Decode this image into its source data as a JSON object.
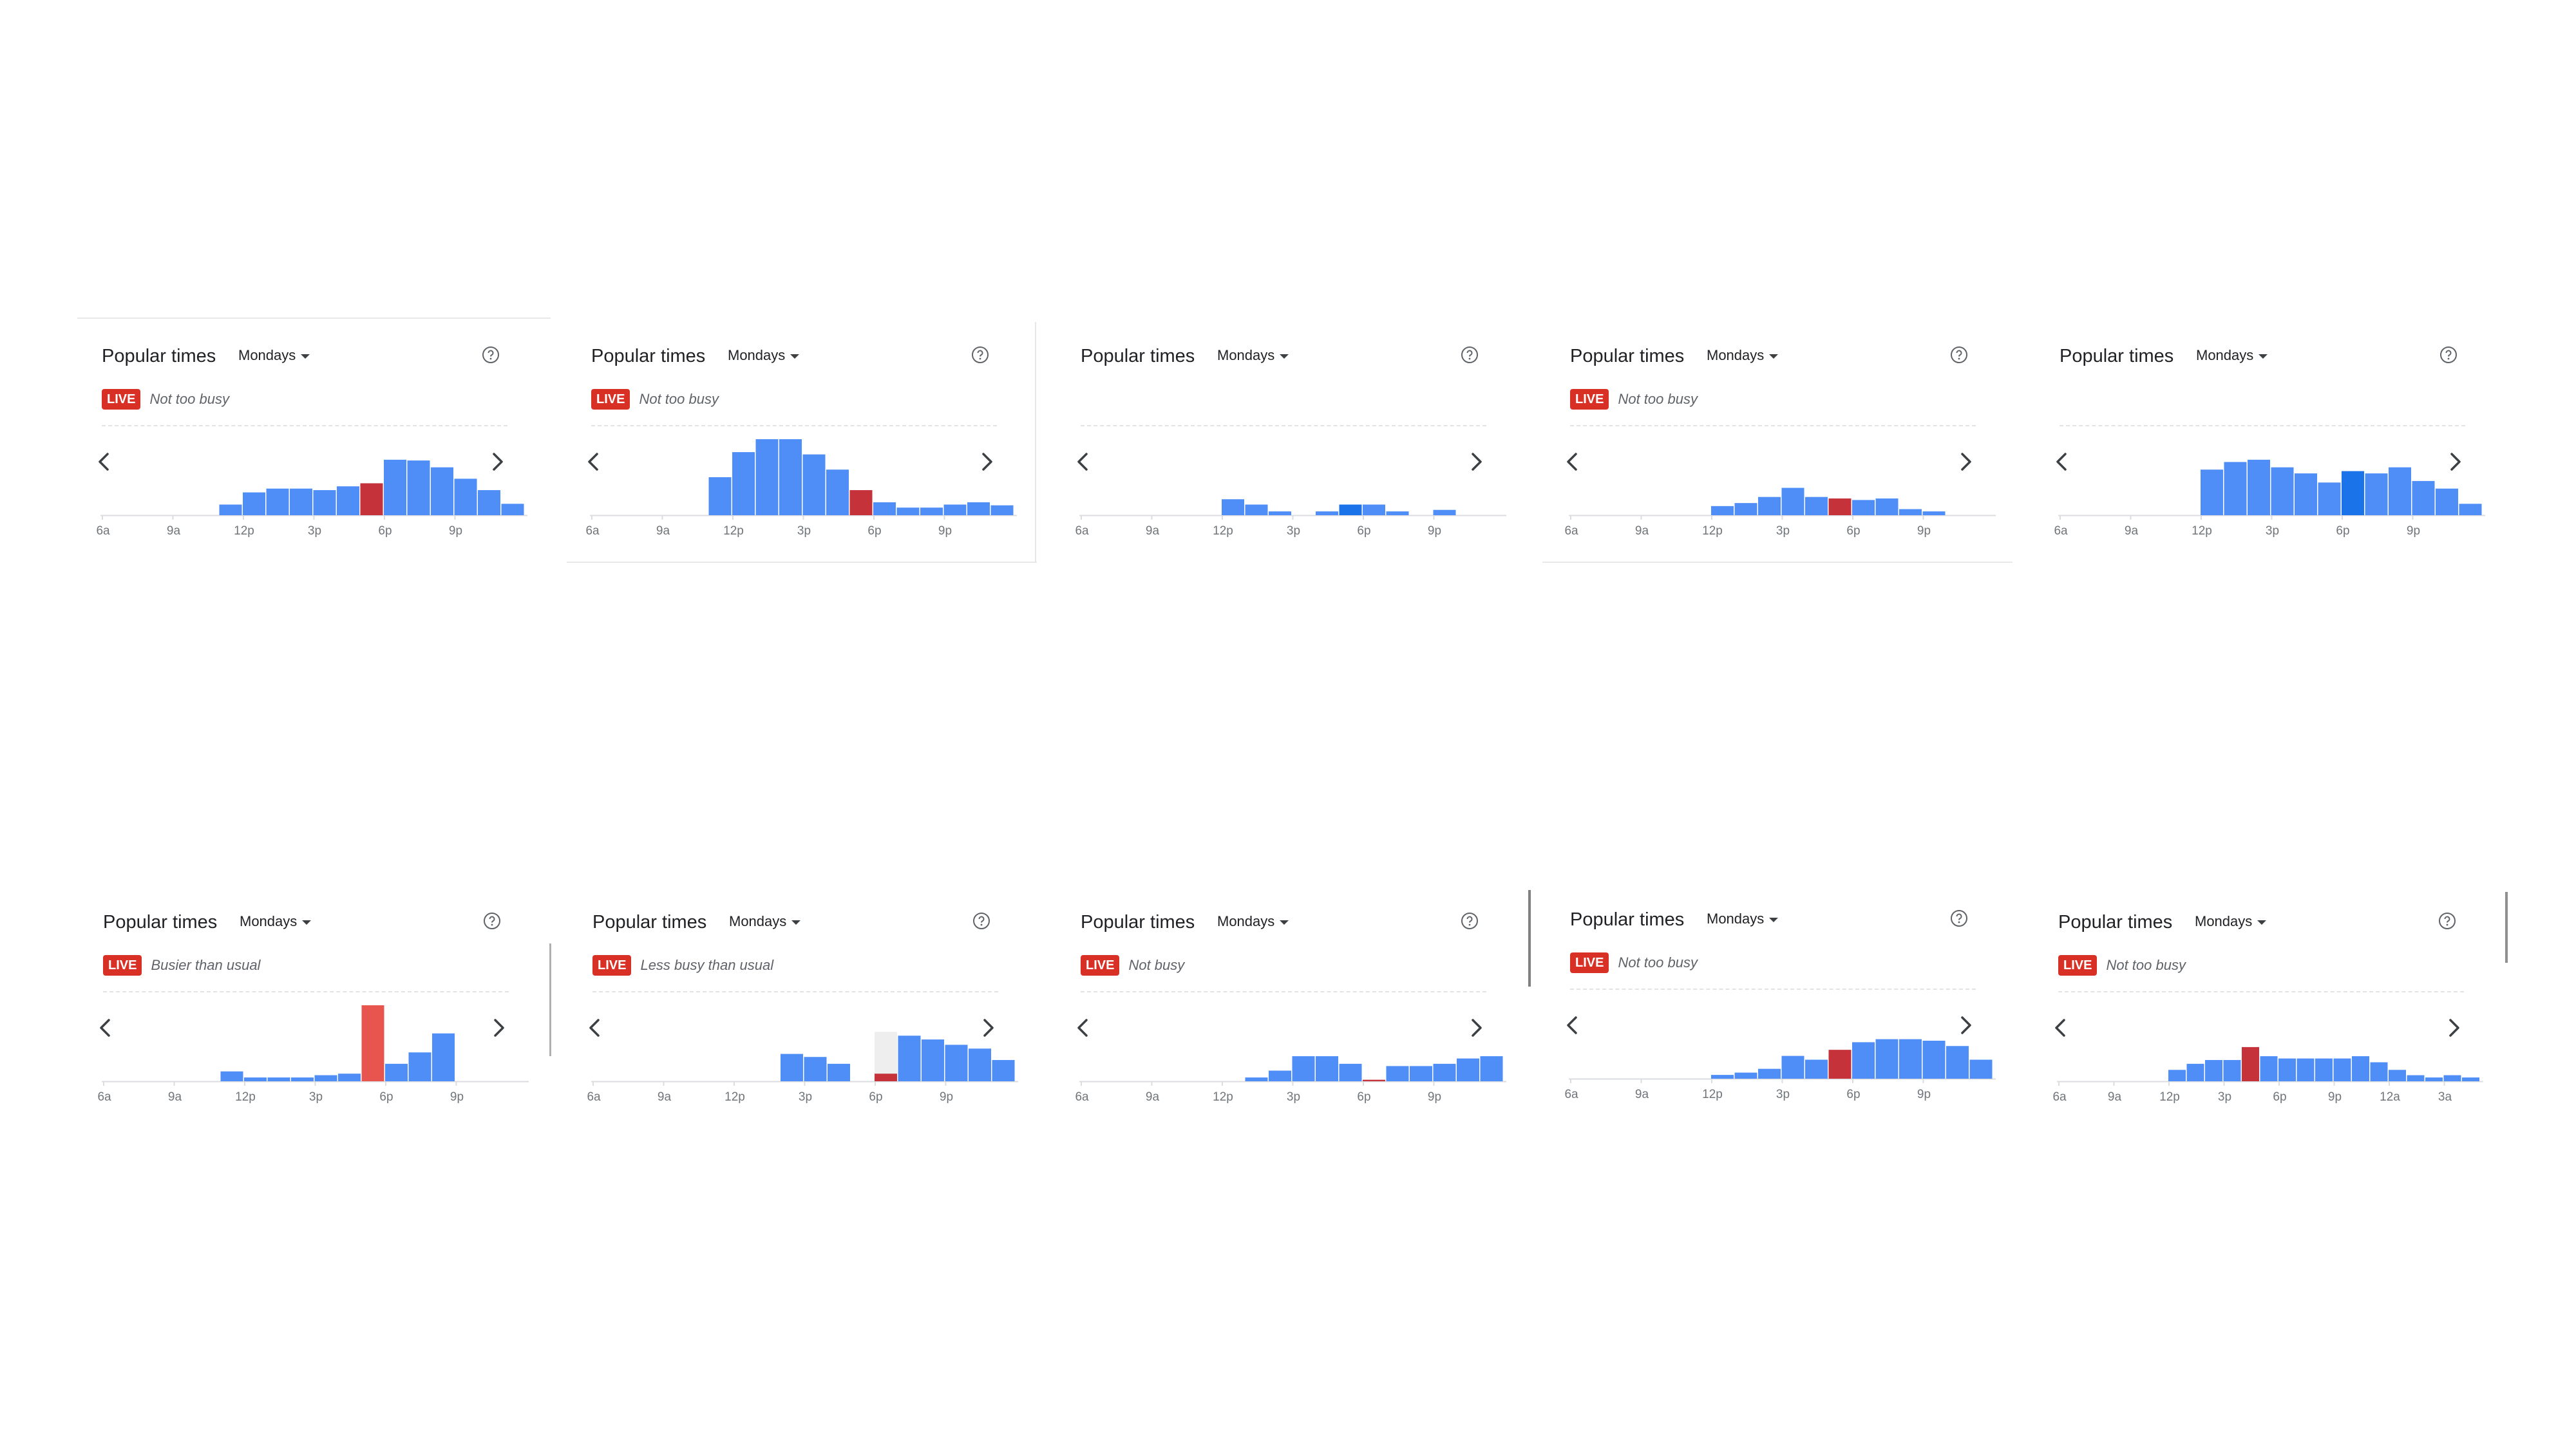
{
  "colors": {
    "bar": "#4f8ef7",
    "bar_dark": "#1a73e8",
    "live_bar": "#e8544e",
    "live_bar_dark": "#c5323a",
    "usual_bg": "#eeeeee",
    "axis": "#dadce0",
    "tick_text": "#70757a",
    "live_badge": "#d93025"
  },
  "icons": {
    "help": "help-circle-icon",
    "prev": "chevron-left-icon",
    "next": "chevron-right-icon",
    "caret": "caret-down-icon"
  },
  "panels": [
    {
      "title": "Popular times",
      "day": "Mondays",
      "live": true,
      "live_label": "LIVE",
      "status": "Not too busy",
      "chart_data": {
        "type": "bar",
        "title": "",
        "x_ticks": [
          "6a",
          "9a",
          "12p",
          "3p",
          "6p",
          "9p"
        ],
        "ylim": [
          0,
          100
        ],
        "values": [
          0,
          0,
          0,
          0,
          0,
          14,
          30,
          35,
          35,
          33,
          38,
          48,
          73,
          72,
          63,
          48,
          33,
          15
        ],
        "live_index": 11,
        "live_value": 42,
        "live_style": "full",
        "highlight_index": -1
      }
    },
    {
      "title": "Popular times",
      "day": "Mondays",
      "live": true,
      "live_label": "LIVE",
      "status": "Not too busy",
      "chart_data": {
        "type": "bar",
        "title": "",
        "x_ticks": [
          "6a",
          "9a",
          "12p",
          "3p",
          "6p",
          "9p"
        ],
        "ylim": [
          0,
          100
        ],
        "values": [
          0,
          0,
          0,
          0,
          0,
          50,
          83,
          100,
          100,
          80,
          60,
          33,
          17,
          10,
          10,
          14,
          17,
          13
        ],
        "live_index": 11,
        "live_value": 33,
        "live_style": "full",
        "highlight_index": -1
      }
    },
    {
      "title": "Popular times",
      "day": "Mondays",
      "live": false,
      "live_label": "",
      "status": "",
      "chart_data": {
        "type": "bar",
        "title": "",
        "x_ticks": [
          "6a",
          "9a",
          "12p",
          "3p",
          "6p",
          "9p"
        ],
        "ylim": [
          0,
          100
        ],
        "values": [
          0,
          0,
          0,
          0,
          0,
          0,
          21,
          14,
          5,
          0,
          5,
          14,
          14,
          5,
          0,
          7,
          0,
          0
        ],
        "live_index": -1,
        "live_value": 0,
        "live_style": "none",
        "highlight_index": 11
      }
    },
    {
      "title": "Popular times",
      "day": "Mondays",
      "live": true,
      "live_label": "LIVE",
      "status": "Not too busy",
      "chart_data": {
        "type": "bar",
        "title": "",
        "x_ticks": [
          "6a",
          "9a",
          "12p",
          "3p",
          "6p",
          "9p"
        ],
        "ylim": [
          0,
          100
        ],
        "values": [
          0,
          0,
          0,
          0,
          0,
          0,
          12,
          16,
          24,
          36,
          24,
          22,
          20,
          22,
          8,
          5,
          0,
          0
        ],
        "live_index": 11,
        "live_value": 22,
        "live_style": "full",
        "highlight_index": -1
      }
    },
    {
      "title": "Popular times",
      "day": "Mondays",
      "live": false,
      "live_label": "",
      "status": "",
      "chart_data": {
        "type": "bar",
        "title": "",
        "x_ticks": [
          "6a",
          "9a",
          "12p",
          "3p",
          "6p",
          "9p"
        ],
        "ylim": [
          0,
          100
        ],
        "values": [
          0,
          0,
          0,
          0,
          0,
          0,
          60,
          70,
          73,
          63,
          55,
          43,
          58,
          55,
          63,
          45,
          35,
          15
        ],
        "live_index": -1,
        "live_value": 0,
        "live_style": "none",
        "highlight_index": 12
      }
    },
    {
      "title": "Popular times",
      "day": "Mondays",
      "live": true,
      "live_label": "LIVE",
      "status": "Busier than usual",
      "chart_data": {
        "type": "bar",
        "title": "",
        "x_ticks": [
          "6a",
          "9a",
          "12p",
          "3p",
          "6p",
          "9p"
        ],
        "ylim": [
          0,
          100
        ],
        "values": [
          0,
          0,
          0,
          0,
          0,
          13,
          5,
          5,
          5,
          8,
          10,
          10,
          23,
          38,
          63,
          0,
          0,
          0
        ],
        "live_index": 11,
        "live_value": 100,
        "live_style": "full",
        "highlight_index": -1
      }
    },
    {
      "title": "Popular times",
      "day": "Mondays",
      "live": true,
      "live_label": "LIVE",
      "status": "Less busy than usual",
      "chart_data": {
        "type": "bar",
        "title": "",
        "x_ticks": [
          "6a",
          "9a",
          "12p",
          "3p",
          "6p",
          "9p"
        ],
        "ylim": [
          0,
          100
        ],
        "values": [
          0,
          0,
          0,
          0,
          0,
          0,
          0,
          0,
          36,
          32,
          23,
          0,
          45,
          60,
          55,
          48,
          43,
          28
        ],
        "live_index": 12,
        "live_value": 10,
        "live_style": "overlay",
        "usual_value": 65,
        "highlight_index": -1
      }
    },
    {
      "title": "Popular times",
      "day": "Mondays",
      "live": true,
      "live_label": "LIVE",
      "status": "Not busy",
      "chart_data": {
        "type": "bar",
        "title": "",
        "x_ticks": [
          "6a",
          "9a",
          "12p",
          "3p",
          "6p",
          "9p"
        ],
        "ylim": [
          0,
          100
        ],
        "values": [
          0,
          0,
          0,
          0,
          0,
          0,
          0,
          5,
          14,
          33,
          33,
          23,
          0,
          20,
          20,
          23,
          30,
          33
        ],
        "live_index": 12,
        "live_value": 2,
        "live_style": "full",
        "highlight_index": -1
      }
    },
    {
      "title": "Popular times",
      "day": "Mondays",
      "live": true,
      "live_label": "LIVE",
      "status": "Not too busy",
      "chart_data": {
        "type": "bar",
        "title": "",
        "x_ticks": [
          "6a",
          "9a",
          "12p",
          "3p",
          "6p",
          "9p"
        ],
        "ylim": [
          0,
          100
        ],
        "values": [
          0,
          0,
          0,
          0,
          0,
          0,
          5,
          8,
          13,
          30,
          25,
          38,
          48,
          52,
          52,
          50,
          43,
          25
        ],
        "live_index": 11,
        "live_value": 38,
        "live_style": "full",
        "highlight_index": -1
      }
    },
    {
      "title": "Popular times",
      "day": "Mondays",
      "live": true,
      "live_label": "LIVE",
      "status": "Not too busy",
      "chart_data": {
        "type": "bar",
        "title": "",
        "x_ticks": [
          "6a",
          "9a",
          "12p",
          "3p",
          "6p",
          "9p",
          "12a",
          "3a"
        ],
        "ylim": [
          0,
          100
        ],
        "values": [
          0,
          0,
          0,
          0,
          0,
          0,
          15,
          23,
          28,
          28,
          30,
          33,
          30,
          30,
          30,
          30,
          33,
          25,
          15,
          8,
          5,
          8,
          5
        ],
        "live_index": 10,
        "live_value": 45,
        "live_style": "full",
        "highlight_index": -1
      }
    }
  ]
}
